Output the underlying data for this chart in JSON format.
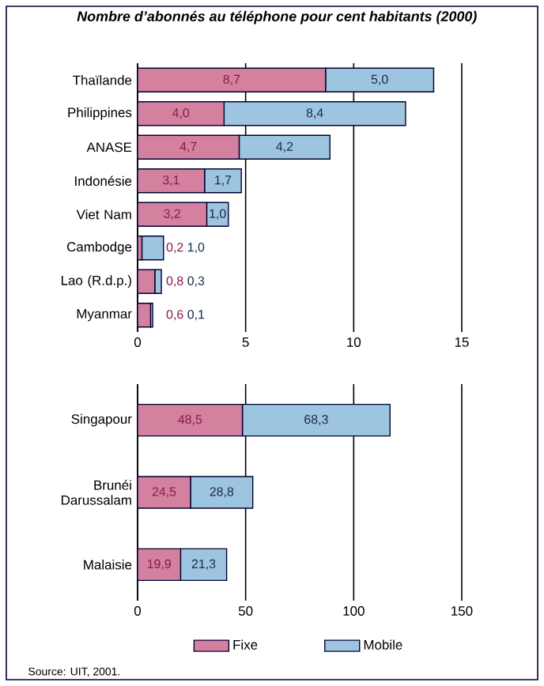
{
  "chart_data": [
    {
      "type": "bar",
      "orientation": "horizontal",
      "stacked": true,
      "title": "Nombre d’abonnés au téléphone pour cent habitants (2000)",
      "categories": [
        "Thaïlande",
        "Philippines",
        "ANASE",
        "Indonésie",
        "Viet Nam",
        "Cambodge",
        "Lao (R.d.p.)",
        "Myanmar"
      ],
      "series": [
        {
          "color": "#d3819f",
          "values": [
            8.7,
            4.0,
            4.7,
            3.1,
            3.2,
            0.2,
            0.8,
            0.6
          ],
          "value_labels": [
            "8,7",
            "4,0",
            "4,7",
            "3,1",
            "3,2",
            "0,2",
            "0,8",
            "0,6"
          ]
        },
        {
          "color": "#9ec5e0",
          "values": [
            5.0,
            8.4,
            4.2,
            1.7,
            1.0,
            1.0,
            0.3,
            0.1
          ],
          "value_labels": [
            "5,0",
            "8,4",
            "4,2",
            "1,7",
            "1,0",
            "1,0",
            "0,3",
            "0,1"
          ]
        }
      ],
      "xlim": [
        0,
        15
      ],
      "xticks": [
        0,
        5,
        10,
        15
      ],
      "grid": "x",
      "legend": false
    },
    {
      "type": "bar",
      "orientation": "horizontal",
      "stacked": true,
      "categories": [
        "Singapour",
        "Brunéi Darussalam",
        "Malaisie"
      ],
      "series": [
        {
          "name": "Fixe",
          "color": "#d3819f",
          "values": [
            48.5,
            24.5,
            19.9
          ],
          "value_labels": [
            "48,5",
            "24,5",
            "19,9"
          ]
        },
        {
          "name": "Mobile",
          "color": "#9ec5e0",
          "values": [
            68.3,
            28.8,
            21.3
          ],
          "value_labels": [
            "68,3",
            "28,8",
            "21,3"
          ]
        }
      ],
      "xlim": [
        0,
        150
      ],
      "xticks": [
        0,
        50,
        100,
        150
      ],
      "grid": "x",
      "legend": "bottom",
      "annotations": [
        "Source: UIT, 2001."
      ]
    }
  ]
}
